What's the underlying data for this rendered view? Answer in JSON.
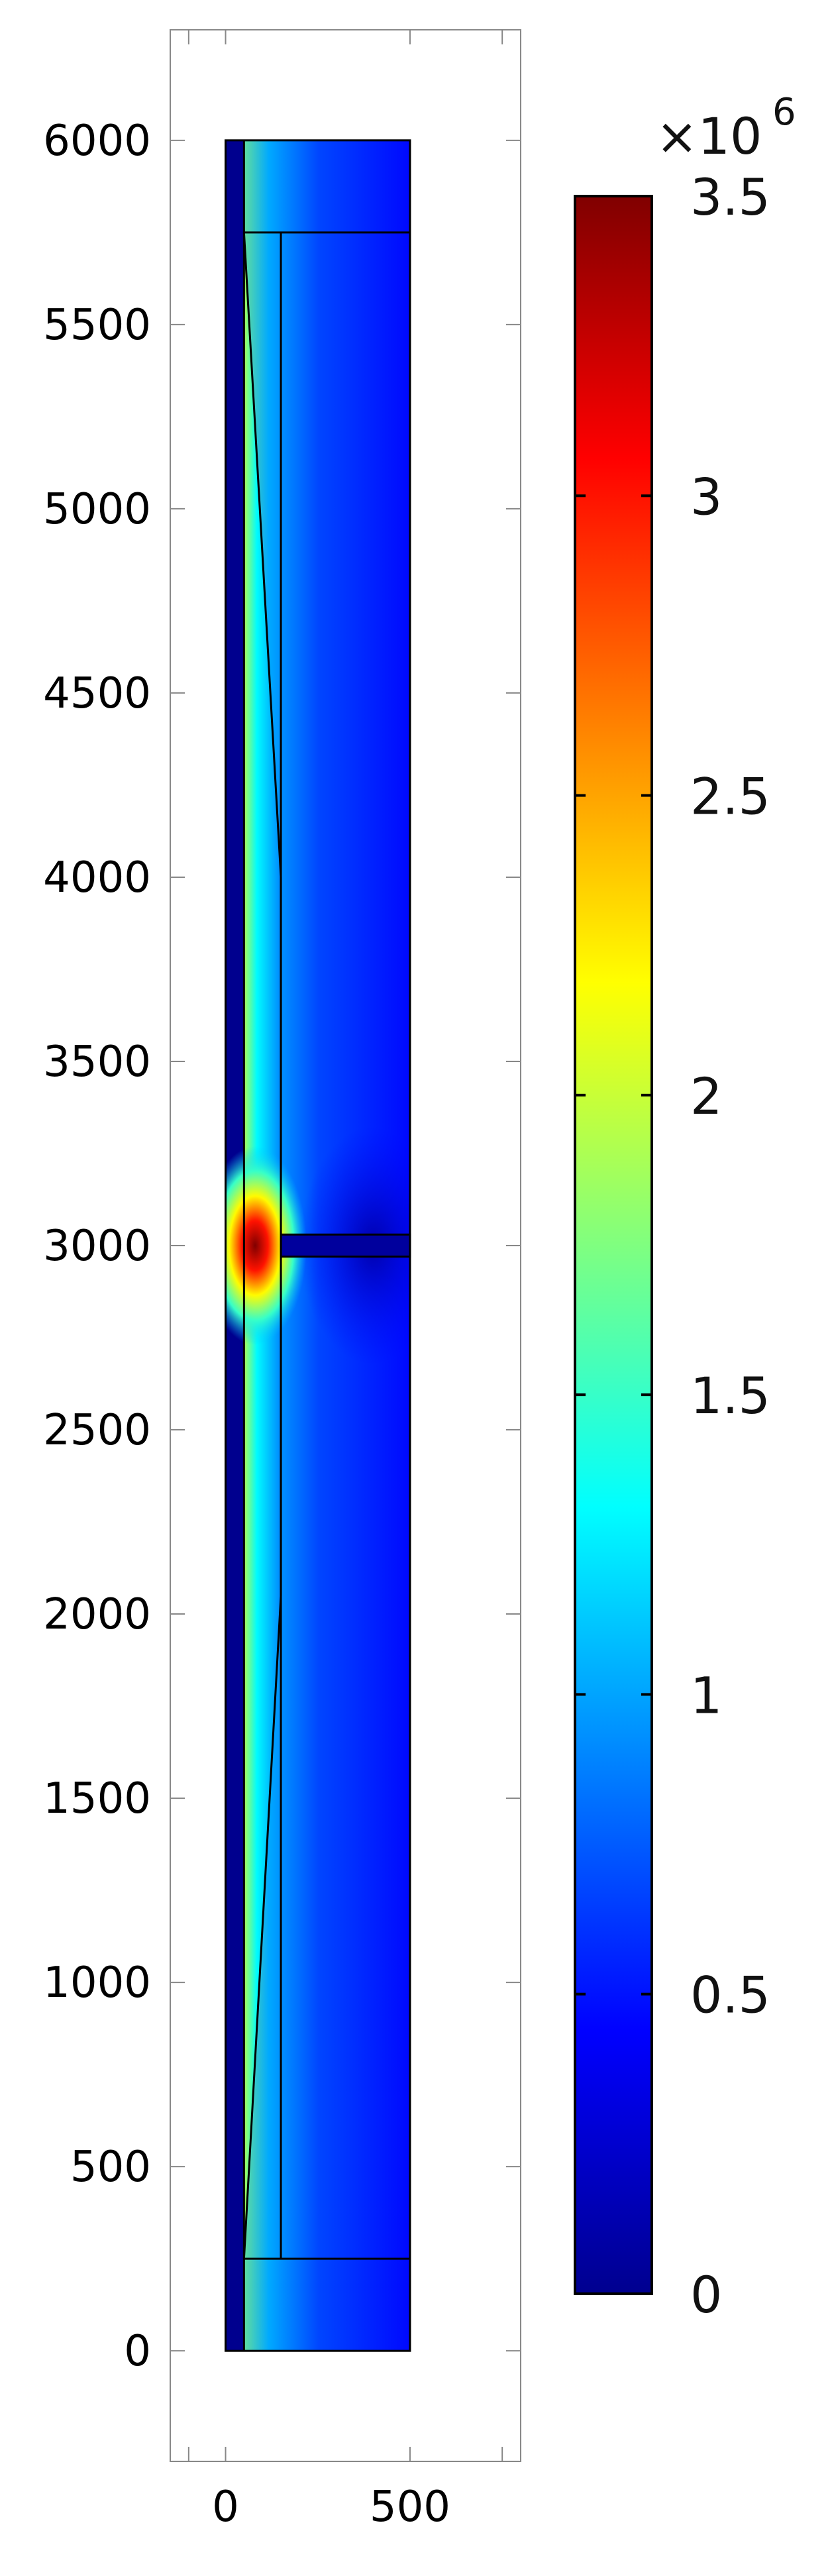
{
  "chart_data": {
    "type": "heatmap",
    "title": "",
    "xlabel": "",
    "ylabel": "",
    "xlim": [
      -150,
      800
    ],
    "ylim": [
      -300,
      6300
    ],
    "x_ticks": [
      0,
      500
    ],
    "x_minor_ticks": [
      -100,
      750
    ],
    "y_ticks": [
      0,
      500,
      1000,
      1500,
      2000,
      2500,
      3000,
      3500,
      4000,
      4500,
      5000,
      5500,
      6000
    ],
    "grid": false,
    "colormap": "jet",
    "colorbar": {
      "min": 0,
      "max": 3500000,
      "ticks": [
        0,
        0.5,
        1,
        1.5,
        2,
        2.5,
        3,
        3.5
      ],
      "multiplier_label": "×10",
      "multiplier_exponent": "6"
    },
    "geometry": {
      "domain": {
        "x": [
          0,
          500
        ],
        "y": [
          0,
          6000
        ]
      },
      "inner_strip": {
        "x": [
          0,
          50
        ],
        "y": [
          0,
          6000
        ]
      },
      "wedge_boundary": [
        [
          50,
          250
        ],
        [
          150,
          2050
        ],
        [
          150,
          4000
        ],
        [
          50,
          5750
        ]
      ],
      "interface_x": 150,
      "horizontal_lines": [
        250,
        5750
      ],
      "horizontal_slot": {
        "x": [
          150,
          500
        ],
        "y": [
          2970,
          3030
        ]
      },
      "hotspot": {
        "x": 80,
        "y": 3000
      }
    },
    "field_levels": {
      "background": 0.55,
      "inner_strip": 0.05,
      "slot": 0.1,
      "wedge_max": 1.9,
      "hotspot_peak": 3.5
    }
  }
}
